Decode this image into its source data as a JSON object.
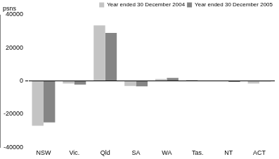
{
  "chart_data": {
    "type": "bar",
    "y_label": "psns",
    "categories": [
      "NSW",
      "Vic.",
      "Qld",
      "SA",
      "WA",
      "Tas.",
      "NT",
      "ACT"
    ],
    "series": [
      {
        "name": "Year ended 30 December 2004",
        "color": "#c4c4c4",
        "values": [
          -27000,
          -1500,
          33500,
          -3000,
          1200,
          700,
          -200,
          -1500
        ]
      },
      {
        "name": "Year ended 30 December 2005",
        "color": "#858585",
        "values": [
          -25000,
          -2200,
          29000,
          -3200,
          1800,
          100,
          -600,
          -300
        ]
      }
    ],
    "ylim": [
      -40000,
      40000
    ],
    "yticks": [
      -40000,
      -20000,
      0,
      20000,
      40000
    ],
    "grid": false,
    "legend": "top-right"
  }
}
